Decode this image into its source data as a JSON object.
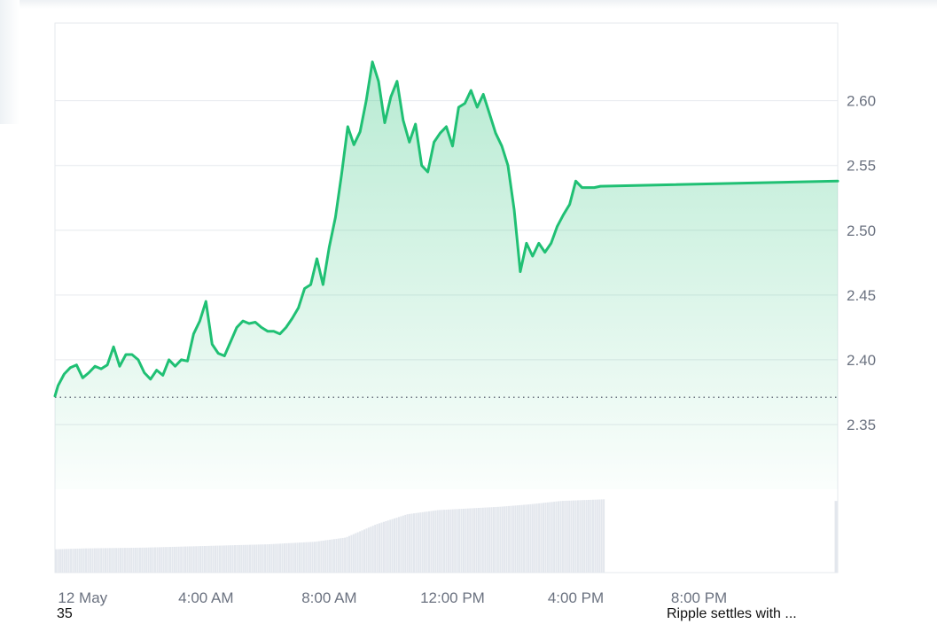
{
  "colors": {
    "line": "#20c074",
    "fill": "#20c074",
    "grid": "#e6e9ee",
    "volume": "#e3e7ed",
    "baseline_dots": "#6b7280"
  },
  "chart_data": {
    "type": "area",
    "title": "",
    "xlabel": "",
    "ylabel": "",
    "x_tick_labels": [
      "12 May",
      "4:00 AM",
      "8:00 AM",
      "12:00 PM",
      "4:00 PM",
      "8:00 PM"
    ],
    "x_ticks_hours": [
      0,
      4,
      8,
      12,
      16,
      20
    ],
    "xlim_hours": [
      -0.9,
      24.5
    ],
    "y_tick_labels": [
      "2.35",
      "2.40",
      "2.45",
      "2.50",
      "2.55",
      "2.60"
    ],
    "y_ticks": [
      2.35,
      2.4,
      2.45,
      2.5,
      2.55,
      2.6
    ],
    "ylim": [
      2.3,
      2.66
    ],
    "baseline": 2.371,
    "grid": true,
    "price_series": {
      "x_hours": [
        -0.9,
        -0.8,
        -0.6,
        -0.4,
        -0.2,
        0.0,
        0.2,
        0.4,
        0.6,
        0.8,
        1.0,
        1.2,
        1.4,
        1.6,
        1.8,
        2.0,
        2.2,
        2.4,
        2.6,
        2.8,
        3.0,
        3.2,
        3.4,
        3.6,
        3.8,
        4.0,
        4.2,
        4.4,
        4.6,
        4.8,
        5.0,
        5.2,
        5.4,
        5.6,
        5.8,
        6.0,
        6.2,
        6.4,
        6.6,
        6.8,
        7.0,
        7.2,
        7.4,
        7.6,
        7.8,
        8.0,
        8.2,
        8.4,
        8.6,
        8.8,
        9.0,
        9.2,
        9.4,
        9.6,
        9.8,
        10.0,
        10.2,
        10.4,
        10.6,
        10.8,
        11.0,
        11.2,
        11.4,
        11.6,
        11.8,
        12.0,
        12.2,
        12.4,
        12.6,
        12.8,
        13.0,
        13.2,
        13.4,
        13.6,
        13.8,
        14.0,
        14.2,
        14.4,
        14.6,
        14.8,
        15.0,
        15.2,
        15.4,
        15.6,
        15.8,
        16.0,
        16.2,
        16.4,
        16.6,
        16.8,
        24.5
      ],
      "values": [
        2.372,
        2.38,
        2.389,
        2.394,
        2.396,
        2.386,
        2.39,
        2.395,
        2.393,
        2.396,
        2.41,
        2.395,
        2.404,
        2.404,
        2.4,
        2.39,
        2.385,
        2.392,
        2.388,
        2.4,
        2.395,
        2.4,
        2.399,
        2.42,
        2.43,
        2.445,
        2.412,
        2.405,
        2.403,
        2.414,
        2.425,
        2.43,
        2.428,
        2.429,
        2.425,
        2.422,
        2.422,
        2.42,
        2.425,
        2.432,
        2.44,
        2.455,
        2.458,
        2.478,
        2.458,
        2.487,
        2.51,
        2.543,
        2.58,
        2.566,
        2.576,
        2.6,
        2.63,
        2.615,
        2.583,
        2.603,
        2.615,
        2.585,
        2.568,
        2.582,
        2.55,
        2.545,
        2.568,
        2.575,
        2.58,
        2.565,
        2.595,
        2.598,
        2.608,
        2.595,
        2.605,
        2.59,
        2.575,
        2.565,
        2.55,
        2.516,
        2.468,
        2.49,
        2.48,
        2.49,
        2.483,
        2.49,
        2.503,
        2.512,
        2.52,
        2.538,
        2.533,
        2.533,
        2.533,
        2.534,
        2.538
      ]
    },
    "volume_series": {
      "x_start_hours": -0.9,
      "x_end_hours": 16.9,
      "points_x_hours": [
        -0.9,
        0,
        2,
        4,
        6,
        7.5,
        8.5,
        9.5,
        10.5,
        11.5,
        12.5,
        13.5,
        14.5,
        15.5,
        16.9
      ],
      "relative_height": [
        0.28,
        0.29,
        0.3,
        0.32,
        0.34,
        0.37,
        0.42,
        0.58,
        0.7,
        0.75,
        0.77,
        0.79,
        0.82,
        0.86,
        0.88
      ],
      "last_bar_x_hours": 24.4,
      "last_bar_relative_height": 0.86
    }
  },
  "bottom_bar": {
    "left_value": "35",
    "headline": "Ripple settles with ..."
  }
}
